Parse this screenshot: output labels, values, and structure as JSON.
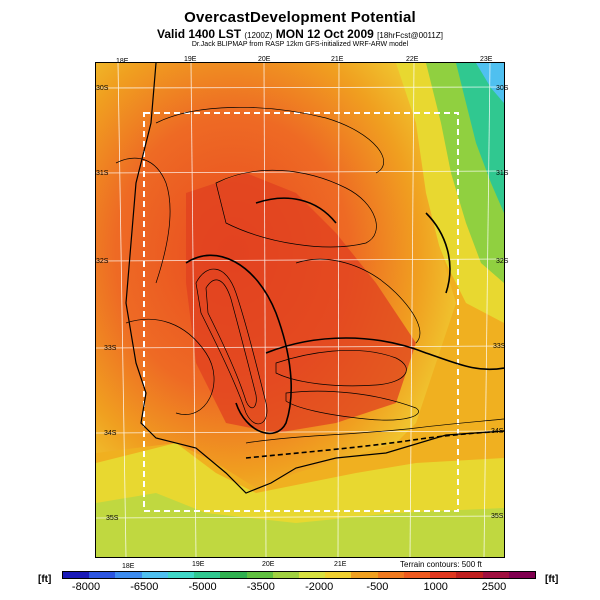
{
  "header": {
    "title": "OvercastDevelopment Potential",
    "valid_main": "Valid 1400 LST",
    "valid_code": "(1200Z)",
    "valid_date": "MON 12 Oct 2009",
    "valid_fcst": "[18hrFcst@0011Z]",
    "subtitle": "Dr.Jack BLIPMAP from RASP 12km GFS-initialized WRF-ARW model"
  },
  "map": {
    "lon_labels_top": [
      "18E",
      "19E",
      "20E",
      "21E",
      "22E",
      "23E"
    ],
    "lon_labels_bottom": [
      "18E",
      "19E",
      "20E",
      "21E"
    ],
    "lat_labels_left": [
      "30S",
      "31S",
      "32S",
      "33S",
      "34S",
      "35S"
    ],
    "lat_labels_right": [
      "30S",
      "31S",
      "32S",
      "33S",
      "34S",
      "35S"
    ],
    "terrain_note": "Terrain contours: 500 ft"
  },
  "legend": {
    "unit_left": "[ft]",
    "unit_right": "[ft]",
    "tick_labels": [
      "-8000",
      "-6500",
      "-5000",
      "-3500",
      "-2000",
      "-500",
      "1000",
      "2500"
    ],
    "colors": [
      "#1a1ab8",
      "#2c55e0",
      "#3d8cf0",
      "#4fc0f0",
      "#40d8c8",
      "#30c890",
      "#30b050",
      "#60c040",
      "#a0d040",
      "#d8e040",
      "#f0d030",
      "#f0a020",
      "#f07a20",
      "#ee5a20",
      "#e03820",
      "#c02020",
      "#a01040",
      "#800050"
    ]
  }
}
